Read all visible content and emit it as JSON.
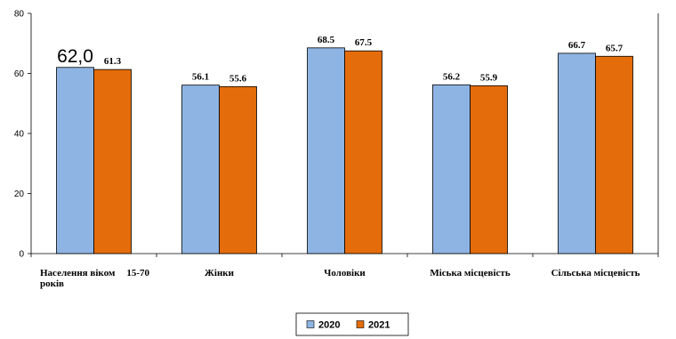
{
  "chart_data": {
    "type": "bar",
    "categories": [
      [
        "Населення віком",
        "15-70",
        "років"
      ],
      [
        "Жінки"
      ],
      [
        "Чоловіки"
      ],
      [
        "Міська місцевість"
      ],
      [
        "Сільська місцевість"
      ]
    ],
    "series": [
      {
        "name": "2020",
        "values": [
          62.0,
          56.1,
          68.5,
          56.2,
          66.7
        ],
        "labels": [
          "62,0",
          "56.1",
          "68.5",
          "56.2",
          "66.7"
        ],
        "color": "#8EB4E3"
      },
      {
        "name": "2021",
        "values": [
          61.3,
          55.6,
          67.5,
          55.9,
          65.7
        ],
        "labels": [
          "61.3",
          "55.6",
          "67.5",
          "55.9",
          "65.7"
        ],
        "color": "#E46C0A"
      }
    ],
    "ylim": [
      0,
      80
    ],
    "yticks": [
      0,
      20,
      40,
      60,
      80
    ],
    "grid": false,
    "legend_position": "bottom"
  }
}
